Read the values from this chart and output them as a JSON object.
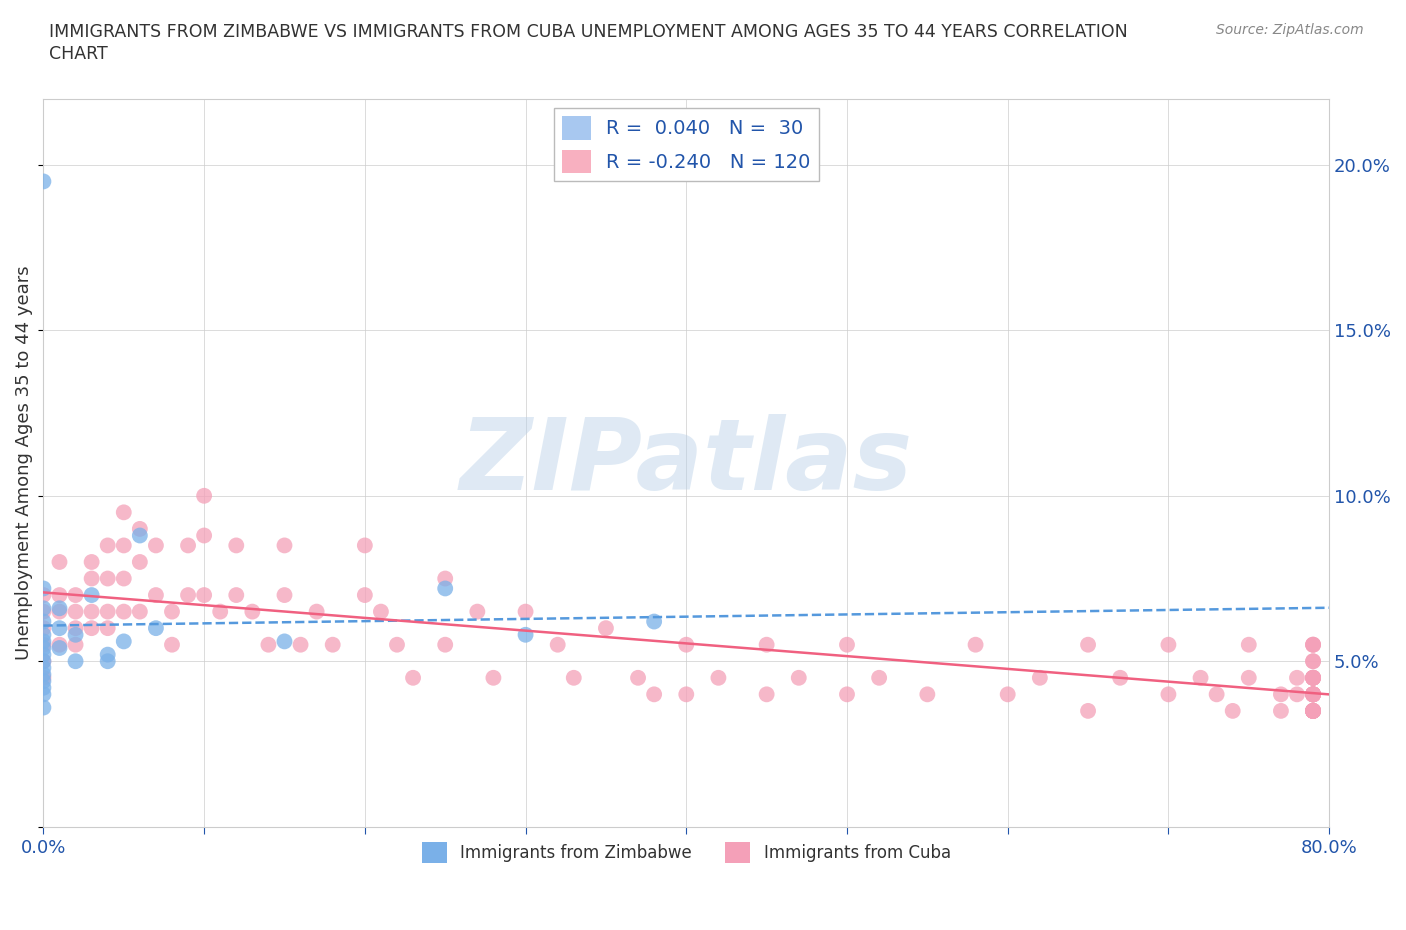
{
  "title_line1": "IMMIGRANTS FROM ZIMBABWE VS IMMIGRANTS FROM CUBA UNEMPLOYMENT AMONG AGES 35 TO 44 YEARS CORRELATION",
  "title_line2": "CHART",
  "source_text": "Source: ZipAtlas.com",
  "ylabel": "Unemployment Among Ages 35 to 44 years",
  "xlim": [
    0.0,
    0.8
  ],
  "ylim": [
    0.0,
    0.22
  ],
  "xtick_positions": [
    0.0,
    0.1,
    0.2,
    0.3,
    0.4,
    0.5,
    0.6,
    0.7,
    0.8
  ],
  "xticklabels": [
    "0.0%",
    "",
    "",
    "",
    "",
    "",
    "",
    "",
    "80.0%"
  ],
  "ytick_positions": [
    0.0,
    0.05,
    0.1,
    0.15,
    0.2
  ],
  "yticklabels_right": [
    "",
    "5.0%",
    "10.0%",
    "15.0%",
    "20.0%"
  ],
  "watermark": "ZIPatlas",
  "legend_r_items": [
    {
      "label_r": "R = ",
      "label_rval": " 0.040",
      "label_n": "  N = ",
      "label_nval": " 30",
      "color": "#a8c8f0"
    },
    {
      "label_r": "R =",
      "label_rval": " -0.240",
      "label_n": "  N = ",
      "label_nval": "120",
      "color": "#f8b0c0"
    }
  ],
  "zim_color": "#7ab0e8",
  "cuba_color": "#f4a0b8",
  "zim_line_color": "#5599dd",
  "cuba_line_color": "#f06080",
  "grid_color": "#cccccc",
  "background_color": "#ffffff",
  "tick_label_color": "#2255aa",
  "title_color": "#333333",
  "source_color": "#888888",
  "ylabel_color": "#333333",
  "zim_scatter_x": [
    0.0,
    0.0,
    0.0,
    0.0,
    0.0,
    0.0,
    0.0,
    0.0,
    0.0,
    0.0,
    0.0,
    0.0,
    0.0,
    0.0,
    0.0,
    0.01,
    0.01,
    0.01,
    0.02,
    0.02,
    0.03,
    0.04,
    0.04,
    0.05,
    0.06,
    0.07,
    0.15,
    0.25,
    0.3,
    0.38
  ],
  "zim_scatter_y": [
    0.195,
    0.072,
    0.066,
    0.062,
    0.058,
    0.056,
    0.054,
    0.052,
    0.05,
    0.048,
    0.046,
    0.044,
    0.042,
    0.04,
    0.036,
    0.066,
    0.06,
    0.054,
    0.058,
    0.05,
    0.07,
    0.052,
    0.05,
    0.056,
    0.088,
    0.06,
    0.056,
    0.072,
    0.058,
    0.062
  ],
  "cuba_scatter_x": [
    0.0,
    0.0,
    0.0,
    0.0,
    0.0,
    0.0,
    0.01,
    0.01,
    0.01,
    0.01,
    0.02,
    0.02,
    0.02,
    0.02,
    0.03,
    0.03,
    0.03,
    0.03,
    0.04,
    0.04,
    0.04,
    0.04,
    0.05,
    0.05,
    0.05,
    0.05,
    0.06,
    0.06,
    0.06,
    0.07,
    0.07,
    0.08,
    0.08,
    0.09,
    0.09,
    0.1,
    0.1,
    0.1,
    0.11,
    0.12,
    0.12,
    0.13,
    0.14,
    0.15,
    0.15,
    0.16,
    0.17,
    0.18,
    0.2,
    0.2,
    0.21,
    0.22,
    0.23,
    0.25,
    0.25,
    0.27,
    0.28,
    0.3,
    0.32,
    0.33,
    0.35,
    0.37,
    0.38,
    0.4,
    0.4,
    0.42,
    0.45,
    0.45,
    0.47,
    0.5,
    0.5,
    0.52,
    0.55,
    0.58,
    0.6,
    0.62,
    0.65,
    0.65,
    0.67,
    0.7,
    0.7,
    0.72,
    0.73,
    0.74,
    0.75,
    0.75,
    0.77,
    0.77,
    0.78,
    0.78,
    0.79,
    0.79,
    0.79,
    0.79,
    0.79,
    0.79,
    0.79,
    0.79,
    0.79,
    0.79,
    0.79,
    0.79,
    0.79,
    0.79,
    0.79,
    0.79,
    0.79,
    0.79,
    0.79,
    0.79,
    0.79,
    0.79,
    0.79,
    0.79,
    0.79,
    0.79,
    0.79,
    0.79,
    0.79,
    0.79
  ],
  "cuba_scatter_y": [
    0.07,
    0.065,
    0.06,
    0.055,
    0.05,
    0.045,
    0.08,
    0.07,
    0.065,
    0.055,
    0.07,
    0.065,
    0.06,
    0.055,
    0.08,
    0.075,
    0.065,
    0.06,
    0.085,
    0.075,
    0.065,
    0.06,
    0.095,
    0.085,
    0.075,
    0.065,
    0.09,
    0.08,
    0.065,
    0.085,
    0.07,
    0.065,
    0.055,
    0.085,
    0.07,
    0.1,
    0.088,
    0.07,
    0.065,
    0.085,
    0.07,
    0.065,
    0.055,
    0.085,
    0.07,
    0.055,
    0.065,
    0.055,
    0.085,
    0.07,
    0.065,
    0.055,
    0.045,
    0.075,
    0.055,
    0.065,
    0.045,
    0.065,
    0.055,
    0.045,
    0.06,
    0.045,
    0.04,
    0.055,
    0.04,
    0.045,
    0.055,
    0.04,
    0.045,
    0.055,
    0.04,
    0.045,
    0.04,
    0.055,
    0.04,
    0.045,
    0.055,
    0.035,
    0.045,
    0.055,
    0.04,
    0.045,
    0.04,
    0.035,
    0.055,
    0.045,
    0.04,
    0.035,
    0.045,
    0.04,
    0.055,
    0.045,
    0.04,
    0.035,
    0.05,
    0.04,
    0.035,
    0.045,
    0.04,
    0.055,
    0.04,
    0.035,
    0.045,
    0.04,
    0.035,
    0.045,
    0.04,
    0.035,
    0.05,
    0.035,
    0.04,
    0.035,
    0.045,
    0.04,
    0.035,
    0.045,
    0.04,
    0.035,
    0.055,
    0.035
  ]
}
